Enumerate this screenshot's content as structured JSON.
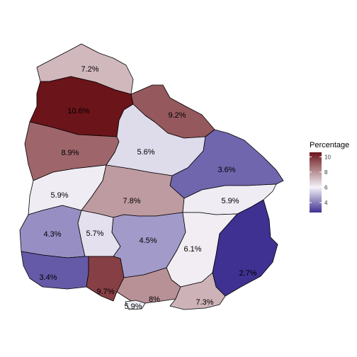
{
  "legend": {
    "title": "Percentage",
    "ticks": [
      "10",
      "8",
      "6",
      "4"
    ],
    "tick_values": [
      10,
      8,
      6,
      4
    ],
    "range": [
      2.7,
      10.6
    ],
    "midpoint": 6,
    "low_color": "#3f3192",
    "mid_color": "#f4f2f7",
    "high_color": "#6b1419"
  },
  "regions": [
    {
      "id": "artigas",
      "label": "7.2%",
      "value": 7.2
    },
    {
      "id": "salto",
      "label": "10.6%",
      "value": 10.6
    },
    {
      "id": "rivera",
      "label": "9.2%",
      "value": 9.2
    },
    {
      "id": "paysandu",
      "label": "8.9%",
      "value": 8.9
    },
    {
      "id": "tacuarembo",
      "label": "5.6%",
      "value": 5.6
    },
    {
      "id": "cerro-largo",
      "label": "3.6%",
      "value": 3.6
    },
    {
      "id": "rio-negro",
      "label": "5.9%",
      "value": 5.9
    },
    {
      "id": "durazno",
      "label": "7.8%",
      "value": 7.8
    },
    {
      "id": "treinta-y-tres",
      "label": "5.9%",
      "value": 5.9
    },
    {
      "id": "soriano",
      "label": "4.3%",
      "value": 4.3
    },
    {
      "id": "flores",
      "label": "5.7%",
      "value": 5.7
    },
    {
      "id": "florida",
      "label": "4.5%",
      "value": 4.5
    },
    {
      "id": "lavalleja",
      "label": "6.1%",
      "value": 6.1
    },
    {
      "id": "rocha",
      "label": "2.7%",
      "value": 2.7
    },
    {
      "id": "colonia",
      "label": "3.4%",
      "value": 3.4
    },
    {
      "id": "san-jose",
      "label": "9.7%",
      "value": 9.7
    },
    {
      "id": "canelones",
      "label": "8%",
      "value": 8.0
    },
    {
      "id": "montevideo",
      "label": "5.9%",
      "value": 5.9
    },
    {
      "id": "maldonado",
      "label": "7.3%",
      "value": 7.3
    }
  ]
}
